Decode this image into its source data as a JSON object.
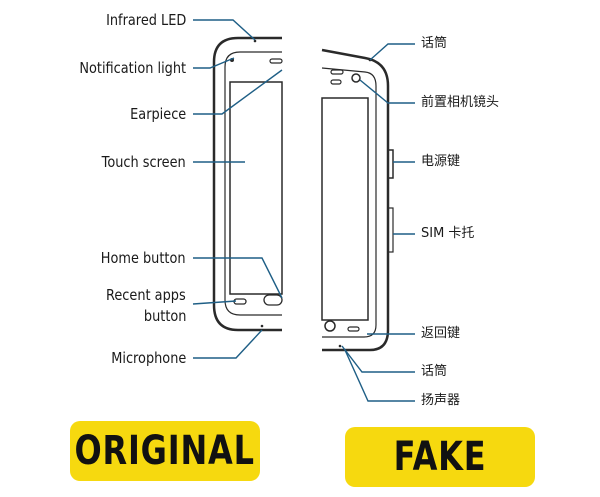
{
  "original_labels": {
    "infrared": "Infrared LED",
    "notification": "Notification light",
    "earpiece": "Earpiece",
    "touch": "Touch screen",
    "home": "Home button",
    "recent_1": "Recent apps",
    "recent_2": "button",
    "microphone": "Microphone"
  },
  "fake_labels": {
    "mic_top": "话筒",
    "front_camera": "前置相机镜头",
    "power": "电源键",
    "sim": "SIM 卡托",
    "back": "返回键",
    "mic_bottom": "话筒",
    "speaker": "扬声器"
  },
  "badges": {
    "original": "ORIGINAL",
    "fake": "FAKE"
  },
  "colors": {
    "leader": "#1f5f86",
    "phone": "#2a2a2a",
    "badge": "#f6d90f"
  }
}
